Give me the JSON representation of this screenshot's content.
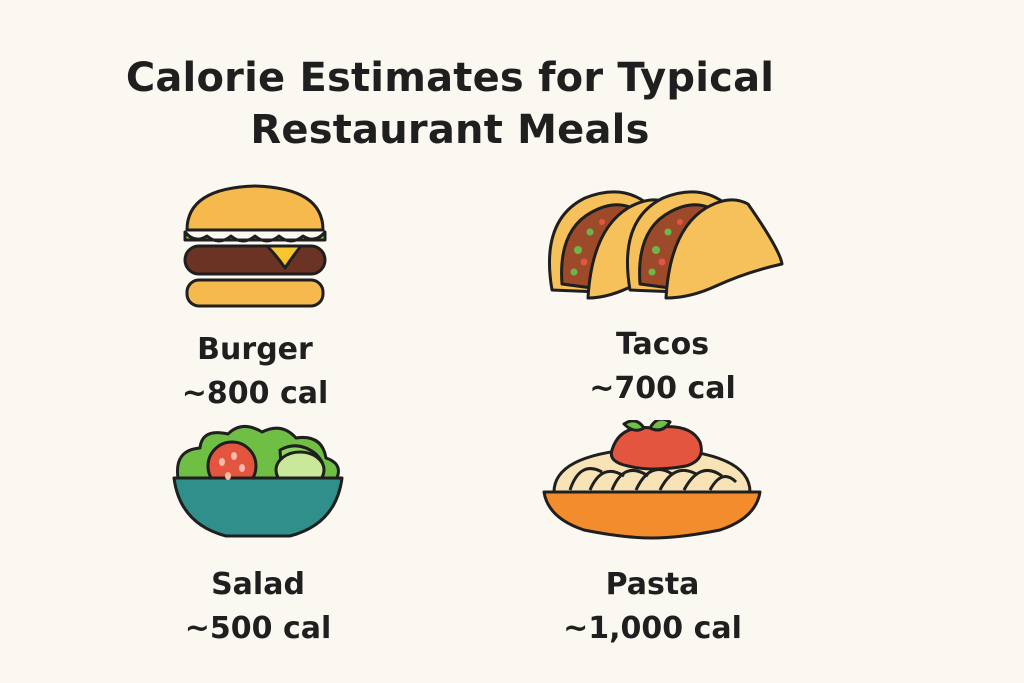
{
  "title": {
    "line1": "Calorie Estimates for Typical",
    "line2": "Restaurant Meals"
  },
  "meals": [
    {
      "name": "Burger",
      "calories": "~800 cal",
      "icon": "burger-icon"
    },
    {
      "name": "Tacos",
      "calories": "~700 cal",
      "icon": "tacos-icon"
    },
    {
      "name": "Salad",
      "calories": "~500 cal",
      "icon": "salad-icon"
    },
    {
      "name": "Pasta",
      "calories": "~1,000 cal",
      "icon": "pasta-icon"
    }
  ],
  "colors": {
    "background": "#fbf8f1",
    "text": "#1f1f1f",
    "outline": "#1f1f1f",
    "bun": "#f6b94e",
    "lettuce": "#8fcf5a",
    "patty": "#6b3323",
    "cheese": "#f7c52d",
    "taco_shell": "#f6c15a",
    "bowl": "#2f8f8a",
    "tomato": "#e4553f",
    "pasta_bowl": "#f28c2c",
    "noodles": "#f7e3b5"
  }
}
